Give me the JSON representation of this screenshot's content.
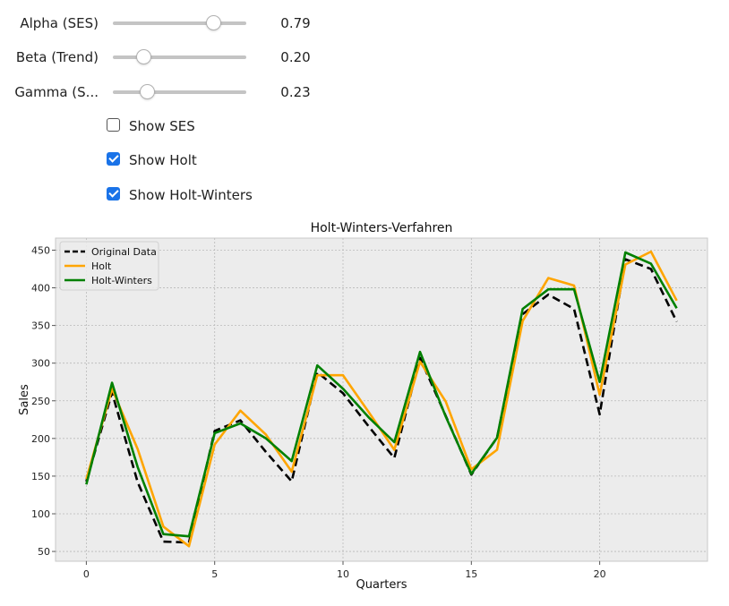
{
  "controls": {
    "sliders": [
      {
        "label": "Alpha (SES)",
        "value": 0.79,
        "value_text": "0.79"
      },
      {
        "label": "Beta (Trend)",
        "value": 0.2,
        "value_text": "0.20"
      },
      {
        "label": "Gamma (S...",
        "value": 0.23,
        "value_text": "0.23"
      }
    ],
    "checkboxes": [
      {
        "label": "Show SES",
        "checked": false
      },
      {
        "label": "Show Holt",
        "checked": true
      },
      {
        "label": "Show Holt-Winters",
        "checked": true
      }
    ]
  },
  "chart_data": {
    "type": "line",
    "title": "Holt-Winters-Verfahren",
    "xlabel": "Quarters",
    "ylabel": "Sales",
    "xlim": [
      -1.2,
      24.2
    ],
    "ylim": [
      37,
      466
    ],
    "xticks": [
      0,
      5,
      10,
      15,
      20
    ],
    "yticks": [
      50,
      100,
      150,
      200,
      250,
      300,
      350,
      400,
      450
    ],
    "grid": true,
    "legend_position": "top-left",
    "x": [
      0,
      1,
      2,
      3,
      4,
      5,
      6,
      7,
      8,
      9,
      10,
      11,
      12,
      13,
      14,
      15,
      16,
      17,
      18,
      19,
      20,
      21,
      22,
      23
    ],
    "series": [
      {
        "name": "Original Data",
        "color": "#000000",
        "style": "dashed",
        "values": [
          143,
          261,
          142,
          63,
          62,
          210,
          224,
          182,
          143,
          288,
          260,
          216,
          174,
          307,
          230,
          152,
          201,
          365,
          391,
          372,
          232,
          438,
          425,
          355
        ]
      },
      {
        "name": "Holt",
        "color": "#ffa500",
        "style": "solid",
        "values": [
          146,
          266,
          186,
          83,
          57,
          192,
          237,
          205,
          156,
          284,
          284,
          235,
          185,
          302,
          249,
          159,
          185,
          356,
          413,
          403,
          258,
          431,
          448,
          383
        ]
      },
      {
        "name": "Holt-Winters",
        "color": "#008000",
        "style": "solid",
        "values": [
          139,
          274,
          162,
          73,
          70,
          207,
          220,
          200,
          170,
          297,
          266,
          228,
          195,
          315,
          229,
          153,
          201,
          372,
          398,
          398,
          275,
          447,
          432,
          373
        ]
      }
    ]
  }
}
